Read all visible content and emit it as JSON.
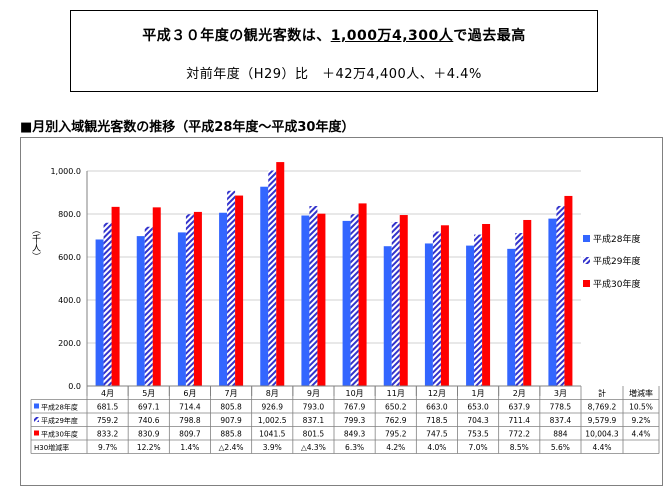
{
  "headline": {
    "prefix": "平成３０年度の観光客数は、",
    "highlight": "1,000万4,300人",
    "suffix": "で過去最高"
  },
  "subline": "対前年度（H29）比　＋42万4,400人、＋4.4%",
  "section_title": "■月別入域観光客数の推移（平成28年度～平成30年度）",
  "colors": {
    "h28": "#3366ff",
    "h29_stripe": "#3333cc",
    "h30": "#ff0000"
  },
  "chart_data": {
    "type": "bar",
    "ylabel": "（千人）",
    "ylim": [
      0,
      1000
    ],
    "yticks": [
      "0.0",
      "200.0",
      "400.0",
      "600.0",
      "800.0",
      "1,000.0"
    ],
    "ytick_values": [
      0,
      200,
      400,
      600,
      800,
      1000
    ],
    "categories": [
      "4月",
      "5月",
      "6月",
      "7月",
      "8月",
      "9月",
      "10月",
      "11月",
      "12月",
      "1月",
      "2月",
      "3月"
    ],
    "series": [
      {
        "name": "平成28年度",
        "values": [
          681.5,
          697.1,
          714.4,
          805.8,
          926.9,
          793.0,
          767.9,
          650.2,
          663.0,
          653.0,
          637.9,
          778.5
        ]
      },
      {
        "name": "平成29年度",
        "values": [
          759.2,
          740.6,
          798.8,
          907.9,
          1002.5,
          837.1,
          799.3,
          762.9,
          718.5,
          704.3,
          711.4,
          837.4
        ]
      },
      {
        "name": "平成30年度",
        "values": [
          833.2,
          830.9,
          809.7,
          885.8,
          1041.5,
          801.5,
          849.3,
          795.2,
          747.5,
          753.5,
          772.2,
          884
        ]
      }
    ],
    "legend_position": "right",
    "table": {
      "extra_headers": [
        "計",
        "増減率"
      ],
      "rows": [
        {
          "label": "平成28年度",
          "cells": [
            "681.5",
            "697.1",
            "714.4",
            "805.8",
            "926.9",
            "793.0",
            "767.9",
            "650.2",
            "663.0",
            "653.0",
            "637.9",
            "778.5",
            "8,769.2",
            "10.5%"
          ]
        },
        {
          "label": "平成29年度",
          "cells": [
            "759.2",
            "740.6",
            "798.8",
            "907.9",
            "1,002.5",
            "837.1",
            "799.3",
            "762.9",
            "718.5",
            "704.3",
            "711.4",
            "837.4",
            "9,579.9",
            "9.2%"
          ]
        },
        {
          "label": "平成30年度",
          "cells": [
            "833.2",
            "830.9",
            "809.7",
            "885.8",
            "1041.5",
            "801.5",
            "849.3",
            "795.2",
            "747.5",
            "753.5",
            "772.2",
            "884",
            "10,004.3",
            "4.4%"
          ]
        },
        {
          "label": "H30増減率",
          "cells": [
            "9.7%",
            "12.2%",
            "1.4%",
            "△2.4%",
            "3.9%",
            "△4.3%",
            "6.3%",
            "4.2%",
            "4.0%",
            "7.0%",
            "8.5%",
            "5.6%",
            "4.4%",
            ""
          ]
        }
      ]
    }
  }
}
